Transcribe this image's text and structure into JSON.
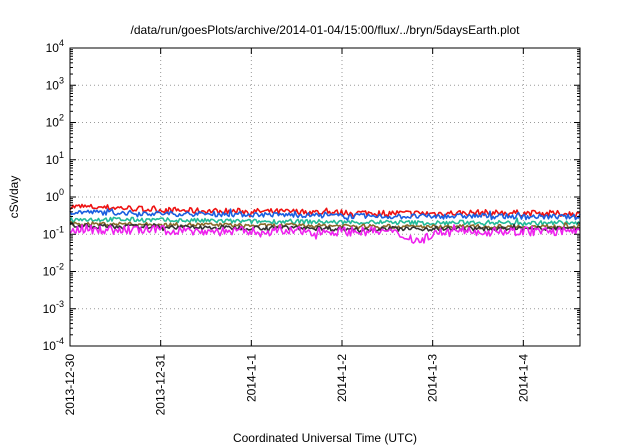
{
  "chart_data": {
    "type": "line",
    "title": "/data/run/goesPlots/archive/2014-01-04/15:00/flux/../bryn/5daysEarth.plot",
    "xlabel": "Coordinated Universal Time (UTC)",
    "ylabel": "cSv/day",
    "y_scale": "log",
    "ylim": [
      0.0001,
      10000
    ],
    "y_ticks": [
      {
        "value": 0.0001,
        "base": "10",
        "exp": "-4"
      },
      {
        "value": 0.001,
        "base": "10",
        "exp": "-3"
      },
      {
        "value": 0.01,
        "base": "10",
        "exp": "-2"
      },
      {
        "value": 0.1,
        "base": "10",
        "exp": "-1"
      },
      {
        "value": 1,
        "base": "10",
        "exp": "0"
      },
      {
        "value": 10,
        "base": "10",
        "exp": "1"
      },
      {
        "value": 100,
        "base": "10",
        "exp": "2"
      },
      {
        "value": 1000,
        "base": "10",
        "exp": "3"
      },
      {
        "value": 10000,
        "base": "10",
        "exp": "4"
      }
    ],
    "xlim": [
      "2013-12-30T00:00",
      "2014-01-04T15:00"
    ],
    "x_ticks": [
      {
        "value": "2013-12-30T00:00",
        "label": "2013-12-30"
      },
      {
        "value": "2013-12-31T00:00",
        "label": "2013-12-31"
      },
      {
        "value": "2014-01-01T00:00",
        "label": "2014-1-1"
      },
      {
        "value": "2014-01-02T00:00",
        "label": "2014-1-2"
      },
      {
        "value": "2014-01-03T00:00",
        "label": "2014-1-3"
      },
      {
        "value": "2014-01-04T00:00",
        "label": "2014-1-4"
      }
    ],
    "grid": true,
    "series": [
      {
        "color": "#ee1111",
        "level_range": [
          0.3,
          0.6
        ],
        "points": [
          [
            "2013-12-30T00:00",
            0.55
          ],
          [
            "2013-12-30T12:00",
            0.52
          ],
          [
            "2013-12-31T00:00",
            0.45
          ],
          [
            "2013-12-31T12:00",
            0.42
          ],
          [
            "2014-01-01T00:00",
            0.41
          ],
          [
            "2014-01-01T12:00",
            0.4
          ],
          [
            "2014-01-02T00:00",
            0.38
          ],
          [
            "2014-01-02T12:00",
            0.37
          ],
          [
            "2014-01-03T00:00",
            0.36
          ],
          [
            "2014-01-03T12:00",
            0.38
          ],
          [
            "2014-01-04T00:00",
            0.37
          ],
          [
            "2014-01-04T15:00",
            0.35
          ]
        ]
      },
      {
        "color": "#1a5fe0",
        "level_range": [
          0.25,
          0.45
        ],
        "points": [
          [
            "2013-12-30T00:00",
            0.4
          ],
          [
            "2013-12-30T12:00",
            0.38
          ],
          [
            "2013-12-31T00:00",
            0.36
          ],
          [
            "2013-12-31T12:00",
            0.35
          ],
          [
            "2014-01-01T00:00",
            0.34
          ],
          [
            "2014-01-01T12:00",
            0.33
          ],
          [
            "2014-01-02T00:00",
            0.31
          ],
          [
            "2014-01-02T12:00",
            0.3
          ],
          [
            "2014-01-03T00:00",
            0.3
          ],
          [
            "2014-01-03T12:00",
            0.31
          ],
          [
            "2014-01-04T00:00",
            0.3
          ],
          [
            "2014-01-04T15:00",
            0.29
          ]
        ]
      },
      {
        "color": "#22bb99",
        "level_range": [
          0.18,
          0.3
        ],
        "points": [
          [
            "2013-12-30T00:00",
            0.25
          ],
          [
            "2013-12-30T12:00",
            0.25
          ],
          [
            "2013-12-31T00:00",
            0.24
          ],
          [
            "2013-12-31T12:00",
            0.23
          ],
          [
            "2014-01-01T00:00",
            0.22
          ],
          [
            "2014-01-01T12:00",
            0.22
          ],
          [
            "2014-01-02T00:00",
            0.21
          ],
          [
            "2014-01-02T12:00",
            0.21
          ],
          [
            "2014-01-03T00:00",
            0.2
          ],
          [
            "2014-01-03T12:00",
            0.21
          ],
          [
            "2014-01-04T00:00",
            0.2
          ],
          [
            "2014-01-04T15:00",
            0.2
          ]
        ]
      },
      {
        "color": "#8a6a2a",
        "level_range": [
          0.14,
          0.22
        ],
        "points": [
          [
            "2013-12-30T00:00",
            0.19
          ],
          [
            "2013-12-30T12:00",
            0.19
          ],
          [
            "2013-12-31T00:00",
            0.18
          ],
          [
            "2013-12-31T12:00",
            0.18
          ],
          [
            "2014-01-01T00:00",
            0.17
          ],
          [
            "2014-01-01T12:00",
            0.17
          ],
          [
            "2014-01-02T00:00",
            0.17
          ],
          [
            "2014-01-02T12:00",
            0.16
          ],
          [
            "2014-01-03T00:00",
            0.16
          ],
          [
            "2014-01-03T12:00",
            0.16
          ],
          [
            "2014-01-04T00:00",
            0.16
          ],
          [
            "2014-01-04T15:00",
            0.16
          ]
        ]
      },
      {
        "color": "#333333",
        "level_range": [
          0.12,
          0.2
        ],
        "points": [
          [
            "2013-12-30T00:00",
            0.17
          ],
          [
            "2013-12-30T12:00",
            0.16
          ],
          [
            "2013-12-31T00:00",
            0.16
          ],
          [
            "2013-12-31T12:00",
            0.15
          ],
          [
            "2014-01-01T00:00",
            0.15
          ],
          [
            "2014-01-01T12:00",
            0.15
          ],
          [
            "2014-01-02T00:00",
            0.14
          ],
          [
            "2014-01-02T12:00",
            0.14
          ],
          [
            "2014-01-03T00:00",
            0.14
          ],
          [
            "2014-01-03T12:00",
            0.14
          ],
          [
            "2014-01-04T00:00",
            0.14
          ],
          [
            "2014-01-04T15:00",
            0.14
          ]
        ]
      },
      {
        "color": "#ee22ee",
        "level_range": [
          0.06,
          0.17
        ],
        "points": [
          [
            "2013-12-30T00:00",
            0.14
          ],
          [
            "2013-12-30T12:00",
            0.13
          ],
          [
            "2013-12-31T00:00",
            0.13
          ],
          [
            "2013-12-31T12:00",
            0.12
          ],
          [
            "2014-01-01T00:00",
            0.12
          ],
          [
            "2014-01-01T12:00",
            0.12
          ],
          [
            "2014-01-02T00:00",
            0.12
          ],
          [
            "2014-01-02T12:00",
            0.12
          ],
          [
            "2014-01-02T21:00",
            0.065
          ],
          [
            "2014-01-03T00:00",
            0.11
          ],
          [
            "2014-01-03T12:00",
            0.12
          ],
          [
            "2014-01-04T00:00",
            0.12
          ],
          [
            "2014-01-04T15:00",
            0.12
          ]
        ]
      }
    ]
  }
}
